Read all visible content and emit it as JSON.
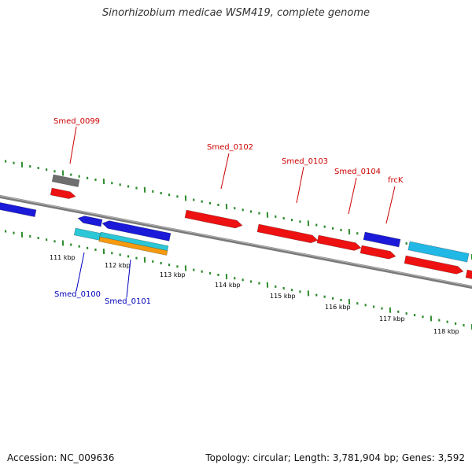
{
  "title": "Sinorhizobium medicae WSM419, complete genome",
  "footer": {
    "accession": "Accession: NC_009636",
    "summary": "Topology: circular; Length: 3,781,904 bp; Genes: 3,592"
  },
  "colors": {
    "backbone": "#7a7a7a",
    "tick": "#2e8b2e",
    "forward_gene": "#ee1111",
    "reverse_gene": "#1a1ad8",
    "pseudo_gene": "#6e6e6e",
    "cyan_gene": "#2bc7d6",
    "light_blue_gene": "#22b8e6",
    "orange_gene": "#f59a10",
    "label_forward": "#cc0000",
    "label_reverse": "#0000bb",
    "scale_label": "#000000"
  },
  "scale_labels": [
    "111 kbp",
    "112 kbp",
    "113 kbp",
    "114 kbp",
    "115 kbp",
    "116 kbp",
    "117 kbp",
    "118 kbp"
  ],
  "gene_labels": [
    "Smed_0099",
    "Smed_0100",
    "Smed_0101",
    "Smed_0102",
    "Smed_0103",
    "Smed_0104",
    "frcK"
  ]
}
